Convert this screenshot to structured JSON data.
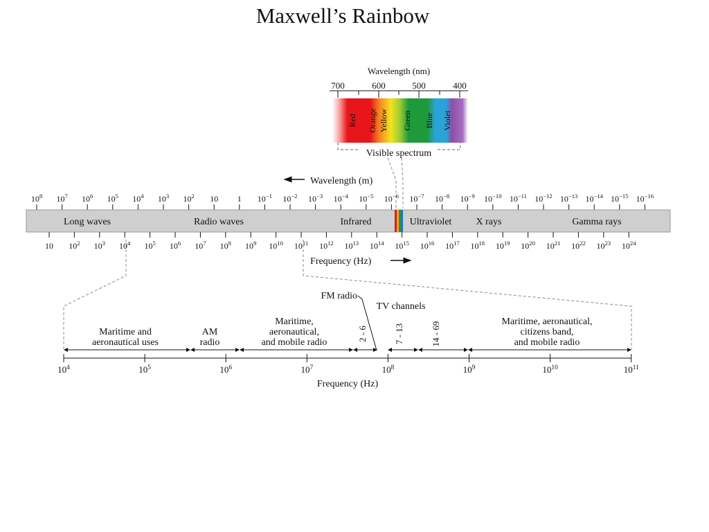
{
  "title": "Maxwell’s Rainbow",
  "visible": {
    "wavelength_label": "Wavelength (nm)",
    "ticks": [
      "700",
      "600",
      "500",
      "400"
    ],
    "bands": [
      {
        "label": "Red",
        "color": "#e8161b"
      },
      {
        "label": "Orange",
        "color": "#f47b20"
      },
      {
        "label": "Yellow",
        "color": "#f5e21d"
      },
      {
        "label": "Green",
        "color": "#1f9a3b"
      },
      {
        "label": "Blue",
        "color": "#2aa3d9"
      },
      {
        "label": "Violet",
        "color": "#8e4ea6"
      }
    ],
    "caption": "Visible spectrum"
  },
  "spectrum": {
    "wavelength_label": "Wavelength (m)",
    "wavelength_ticks": [
      {
        "base": "10",
        "exp": "8"
      },
      {
        "base": "10",
        "exp": "7"
      },
      {
        "base": "10",
        "exp": "6"
      },
      {
        "base": "10",
        "exp": "5"
      },
      {
        "base": "10",
        "exp": "4"
      },
      {
        "base": "10",
        "exp": "3"
      },
      {
        "base": "10",
        "exp": "2"
      },
      {
        "base": "10",
        "exp": ""
      },
      {
        "base": "1",
        "exp": ""
      },
      {
        "base": "10",
        "exp": "−1"
      },
      {
        "base": "10",
        "exp": "−2"
      },
      {
        "base": "10",
        "exp": "−3"
      },
      {
        "base": "10",
        "exp": "−4"
      },
      {
        "base": "10",
        "exp": "−5"
      },
      {
        "base": "10",
        "exp": "−6"
      },
      {
        "base": "10",
        "exp": "−7"
      },
      {
        "base": "10",
        "exp": "−8"
      },
      {
        "base": "10",
        "exp": "−9"
      },
      {
        "base": "10",
        "exp": "−10"
      },
      {
        "base": "10",
        "exp": "−11"
      },
      {
        "base": "10",
        "exp": "−12"
      },
      {
        "base": "10",
        "exp": "−13"
      },
      {
        "base": "10",
        "exp": "−14"
      },
      {
        "base": "10",
        "exp": "−15"
      },
      {
        "base": "10",
        "exp": "−16"
      }
    ],
    "regions": [
      "Long waves",
      "Radio waves",
      "Infrared",
      "Ultraviolet",
      "X rays",
      "Gamma rays"
    ],
    "frequency_label": "Frequency (Hz)",
    "frequency_ticks": [
      {
        "base": "10",
        "exp": ""
      },
      {
        "base": "10",
        "exp": "2"
      },
      {
        "base": "10",
        "exp": "3"
      },
      {
        "base": "10",
        "exp": "4"
      },
      {
        "base": "10",
        "exp": "5"
      },
      {
        "base": "10",
        "exp": "6"
      },
      {
        "base": "10",
        "exp": "7"
      },
      {
        "base": "10",
        "exp": "8"
      },
      {
        "base": "10",
        "exp": "9"
      },
      {
        "base": "10",
        "exp": "10"
      },
      {
        "base": "10",
        "exp": "11"
      },
      {
        "base": "10",
        "exp": "12"
      },
      {
        "base": "10",
        "exp": "13"
      },
      {
        "base": "10",
        "exp": "14"
      },
      {
        "base": "10",
        "exp": "15"
      },
      {
        "base": "10",
        "exp": "16"
      },
      {
        "base": "10",
        "exp": "17"
      },
      {
        "base": "10",
        "exp": "18"
      },
      {
        "base": "10",
        "exp": "19"
      },
      {
        "base": "10",
        "exp": "20"
      },
      {
        "base": "10",
        "exp": "21"
      },
      {
        "base": "10",
        "exp": "22"
      },
      {
        "base": "10",
        "exp": "23"
      },
      {
        "base": "10",
        "exp": "24"
      }
    ]
  },
  "radio": {
    "fm_label": "FM radio",
    "tv_label": "TV channels",
    "bands": [
      {
        "lines": [
          "Maritime and",
          "aeronautical uses"
        ]
      },
      {
        "lines": [
          "AM",
          "radio"
        ]
      },
      {
        "lines": [
          "Maritime,",
          "aeronautical,",
          "and mobile radio"
        ]
      },
      {
        "lines": [
          "2 - 6"
        ]
      },
      {
        "lines": [
          "7 - 13"
        ]
      },
      {
        "lines": [
          "14 - 69"
        ]
      },
      {
        "lines": [
          "Maritime, aeronautical,",
          "citizens band,",
          "and mobile radio"
        ]
      }
    ],
    "frequency_ticks": [
      {
        "base": "10",
        "exp": "4"
      },
      {
        "base": "10",
        "exp": "5"
      },
      {
        "base": "10",
        "exp": "6"
      },
      {
        "base": "10",
        "exp": "7"
      },
      {
        "base": "10",
        "exp": "8"
      },
      {
        "base": "10",
        "exp": "9"
      },
      {
        "base": "10",
        "exp": "10"
      },
      {
        "base": "10",
        "exp": "11"
      }
    ],
    "frequency_label": "Frequency (Hz)"
  }
}
